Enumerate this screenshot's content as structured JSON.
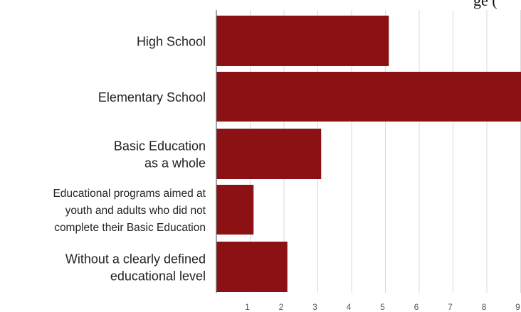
{
  "chart_data": {
    "type": "bar",
    "orientation": "horizontal",
    "title_fragment": "ge (",
    "categories": [
      "High School",
      "Elementary School",
      "Basic Education\nas a whole",
      "Educational programs aimed at\nyouth and adults who did not\ncomplete their Basic Education",
      "Without a clearly defined\neducational level"
    ],
    "values": [
      5.1,
      9.2,
      3.1,
      1.1,
      2.1
    ],
    "x_ticks": [
      "1",
      "2",
      "3",
      "4",
      "5",
      "6",
      "7",
      "8",
      "9"
    ],
    "xlim": [
      0,
      9.2
    ],
    "grid": true,
    "legend": "none",
    "bar_color": "#8b1114"
  }
}
